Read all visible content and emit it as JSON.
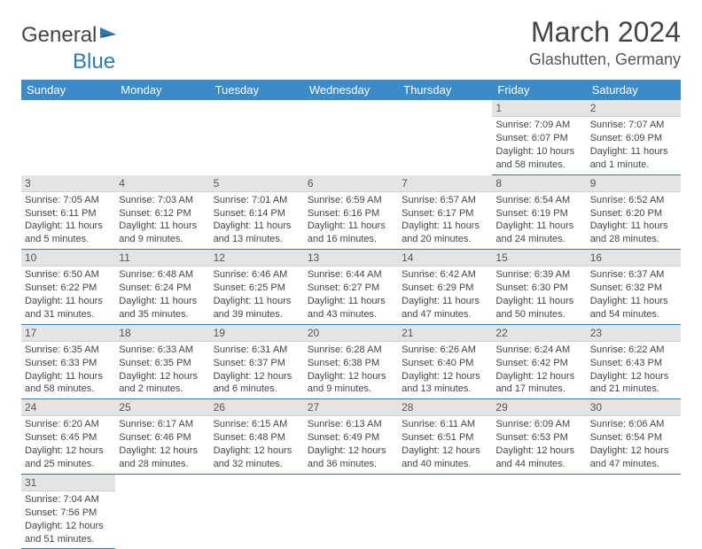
{
  "brand": {
    "part1": "General",
    "part2": "Blue"
  },
  "title": "March 2024",
  "location": "Glashutten, Germany",
  "header_bg": "#3b8bc8",
  "accent_line": "#2a7ab9",
  "daynum_bg": "#e4e4e4",
  "weekdays": [
    "Sunday",
    "Monday",
    "Tuesday",
    "Wednesday",
    "Thursday",
    "Friday",
    "Saturday"
  ],
  "first_weekday_index": 5,
  "days": [
    {
      "n": 1,
      "sunrise": "7:09 AM",
      "sunset": "6:07 PM",
      "daylight": "10 hours and 58 minutes."
    },
    {
      "n": 2,
      "sunrise": "7:07 AM",
      "sunset": "6:09 PM",
      "daylight": "11 hours and 1 minute."
    },
    {
      "n": 3,
      "sunrise": "7:05 AM",
      "sunset": "6:11 PM",
      "daylight": "11 hours and 5 minutes."
    },
    {
      "n": 4,
      "sunrise": "7:03 AM",
      "sunset": "6:12 PM",
      "daylight": "11 hours and 9 minutes."
    },
    {
      "n": 5,
      "sunrise": "7:01 AM",
      "sunset": "6:14 PM",
      "daylight": "11 hours and 13 minutes."
    },
    {
      "n": 6,
      "sunrise": "6:59 AM",
      "sunset": "6:16 PM",
      "daylight": "11 hours and 16 minutes."
    },
    {
      "n": 7,
      "sunrise": "6:57 AM",
      "sunset": "6:17 PM",
      "daylight": "11 hours and 20 minutes."
    },
    {
      "n": 8,
      "sunrise": "6:54 AM",
      "sunset": "6:19 PM",
      "daylight": "11 hours and 24 minutes."
    },
    {
      "n": 9,
      "sunrise": "6:52 AM",
      "sunset": "6:20 PM",
      "daylight": "11 hours and 28 minutes."
    },
    {
      "n": 10,
      "sunrise": "6:50 AM",
      "sunset": "6:22 PM",
      "daylight": "11 hours and 31 minutes."
    },
    {
      "n": 11,
      "sunrise": "6:48 AM",
      "sunset": "6:24 PM",
      "daylight": "11 hours and 35 minutes."
    },
    {
      "n": 12,
      "sunrise": "6:46 AM",
      "sunset": "6:25 PM",
      "daylight": "11 hours and 39 minutes."
    },
    {
      "n": 13,
      "sunrise": "6:44 AM",
      "sunset": "6:27 PM",
      "daylight": "11 hours and 43 minutes."
    },
    {
      "n": 14,
      "sunrise": "6:42 AM",
      "sunset": "6:29 PM",
      "daylight": "11 hours and 47 minutes."
    },
    {
      "n": 15,
      "sunrise": "6:39 AM",
      "sunset": "6:30 PM",
      "daylight": "11 hours and 50 minutes."
    },
    {
      "n": 16,
      "sunrise": "6:37 AM",
      "sunset": "6:32 PM",
      "daylight": "11 hours and 54 minutes."
    },
    {
      "n": 17,
      "sunrise": "6:35 AM",
      "sunset": "6:33 PM",
      "daylight": "11 hours and 58 minutes."
    },
    {
      "n": 18,
      "sunrise": "6:33 AM",
      "sunset": "6:35 PM",
      "daylight": "12 hours and 2 minutes."
    },
    {
      "n": 19,
      "sunrise": "6:31 AM",
      "sunset": "6:37 PM",
      "daylight": "12 hours and 6 minutes."
    },
    {
      "n": 20,
      "sunrise": "6:28 AM",
      "sunset": "6:38 PM",
      "daylight": "12 hours and 9 minutes."
    },
    {
      "n": 21,
      "sunrise": "6:26 AM",
      "sunset": "6:40 PM",
      "daylight": "12 hours and 13 minutes."
    },
    {
      "n": 22,
      "sunrise": "6:24 AM",
      "sunset": "6:42 PM",
      "daylight": "12 hours and 17 minutes."
    },
    {
      "n": 23,
      "sunrise": "6:22 AM",
      "sunset": "6:43 PM",
      "daylight": "12 hours and 21 minutes."
    },
    {
      "n": 24,
      "sunrise": "6:20 AM",
      "sunset": "6:45 PM",
      "daylight": "12 hours and 25 minutes."
    },
    {
      "n": 25,
      "sunrise": "6:17 AM",
      "sunset": "6:46 PM",
      "daylight": "12 hours and 28 minutes."
    },
    {
      "n": 26,
      "sunrise": "6:15 AM",
      "sunset": "6:48 PM",
      "daylight": "12 hours and 32 minutes."
    },
    {
      "n": 27,
      "sunrise": "6:13 AM",
      "sunset": "6:49 PM",
      "daylight": "12 hours and 36 minutes."
    },
    {
      "n": 28,
      "sunrise": "6:11 AM",
      "sunset": "6:51 PM",
      "daylight": "12 hours and 40 minutes."
    },
    {
      "n": 29,
      "sunrise": "6:09 AM",
      "sunset": "6:53 PM",
      "daylight": "12 hours and 44 minutes."
    },
    {
      "n": 30,
      "sunrise": "6:06 AM",
      "sunset": "6:54 PM",
      "daylight": "12 hours and 47 minutes."
    },
    {
      "n": 31,
      "sunrise": "7:04 AM",
      "sunset": "7:56 PM",
      "daylight": "12 hours and 51 minutes."
    }
  ],
  "labels": {
    "sunrise": "Sunrise:",
    "sunset": "Sunset:",
    "daylight": "Daylight:"
  }
}
